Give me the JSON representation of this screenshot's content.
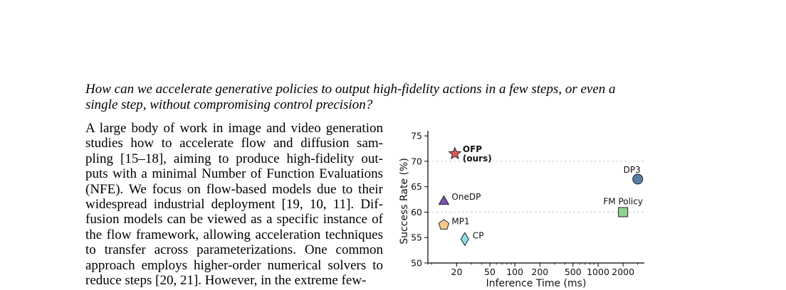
{
  "question": {
    "line1": "How can we accelerate generative policies to output high-fidelity actions in a few steps, or even a",
    "line2": "single step, without compromising control precision?"
  },
  "body_lines": [
    "A large body of work in image and video generation",
    "studies how to accelerate flow and diffusion sam-",
    "pling [15–18], aiming to produce high-fidelity out-",
    "puts with a minimal Number of Function Evaluations",
    "(NFE). We focus on flow-based models due to their",
    "widespread industrial deployment [19, 10, 11]. Dif-",
    "fusion models can be viewed as a specific instance of",
    "the flow framework, allowing acceleration techniques",
    "to transfer across parameterizations. One common",
    "approach employs higher-order numerical solvers to",
    "reduce steps [20, 21]. However, in the extreme few-"
  ],
  "chart_data": {
    "type": "scatter",
    "xlabel": "Inference Time (ms)",
    "ylabel": "Success Rate (%)",
    "xscale": "log",
    "xlim": [
      9,
      3600
    ],
    "ylim": [
      50,
      76
    ],
    "xticks": [
      20,
      50,
      100,
      200,
      500,
      1000,
      2000
    ],
    "xtick_labels": [
      "20",
      "50",
      "100",
      "200",
      "500",
      "1000",
      "2000"
    ],
    "yticks": [
      50,
      55,
      60,
      65,
      70,
      75
    ],
    "ytick_labels": [
      "50",
      "55",
      "60",
      "65",
      "70",
      "75"
    ],
    "grid": "horizontal dashed at 60 and 70",
    "points": [
      {
        "label_lines": [
          "OFP",
          "(ours)"
        ],
        "x": 19,
        "y": 71.5,
        "marker": "star",
        "color": "#e05a5a",
        "bold": true,
        "label_pos": "right"
      },
      {
        "label_lines": [
          "DP3"
        ],
        "x": 3000,
        "y": 66.5,
        "marker": "circle",
        "color": "#5b7ea6",
        "bold": false,
        "label_pos": "top-left"
      },
      {
        "label_lines": [
          "OneDP"
        ],
        "x": 14,
        "y": 62.3,
        "marker": "triangle",
        "color": "#7b52b8",
        "bold": false,
        "label_pos": "right"
      },
      {
        "label_lines": [
          "FM Policy"
        ],
        "x": 2000,
        "y": 60,
        "marker": "square",
        "color": "#8fd28f",
        "bold": false,
        "label_pos": "top"
      },
      {
        "label_lines": [
          "MP1"
        ],
        "x": 14,
        "y": 57.5,
        "marker": "pentagon",
        "color": "#f5c98e",
        "bold": false,
        "label_pos": "right"
      },
      {
        "label_lines": [
          "CP"
        ],
        "x": 25,
        "y": 54.7,
        "marker": "diamond",
        "color": "#8fdde6",
        "bold": false,
        "label_pos": "right"
      }
    ]
  }
}
